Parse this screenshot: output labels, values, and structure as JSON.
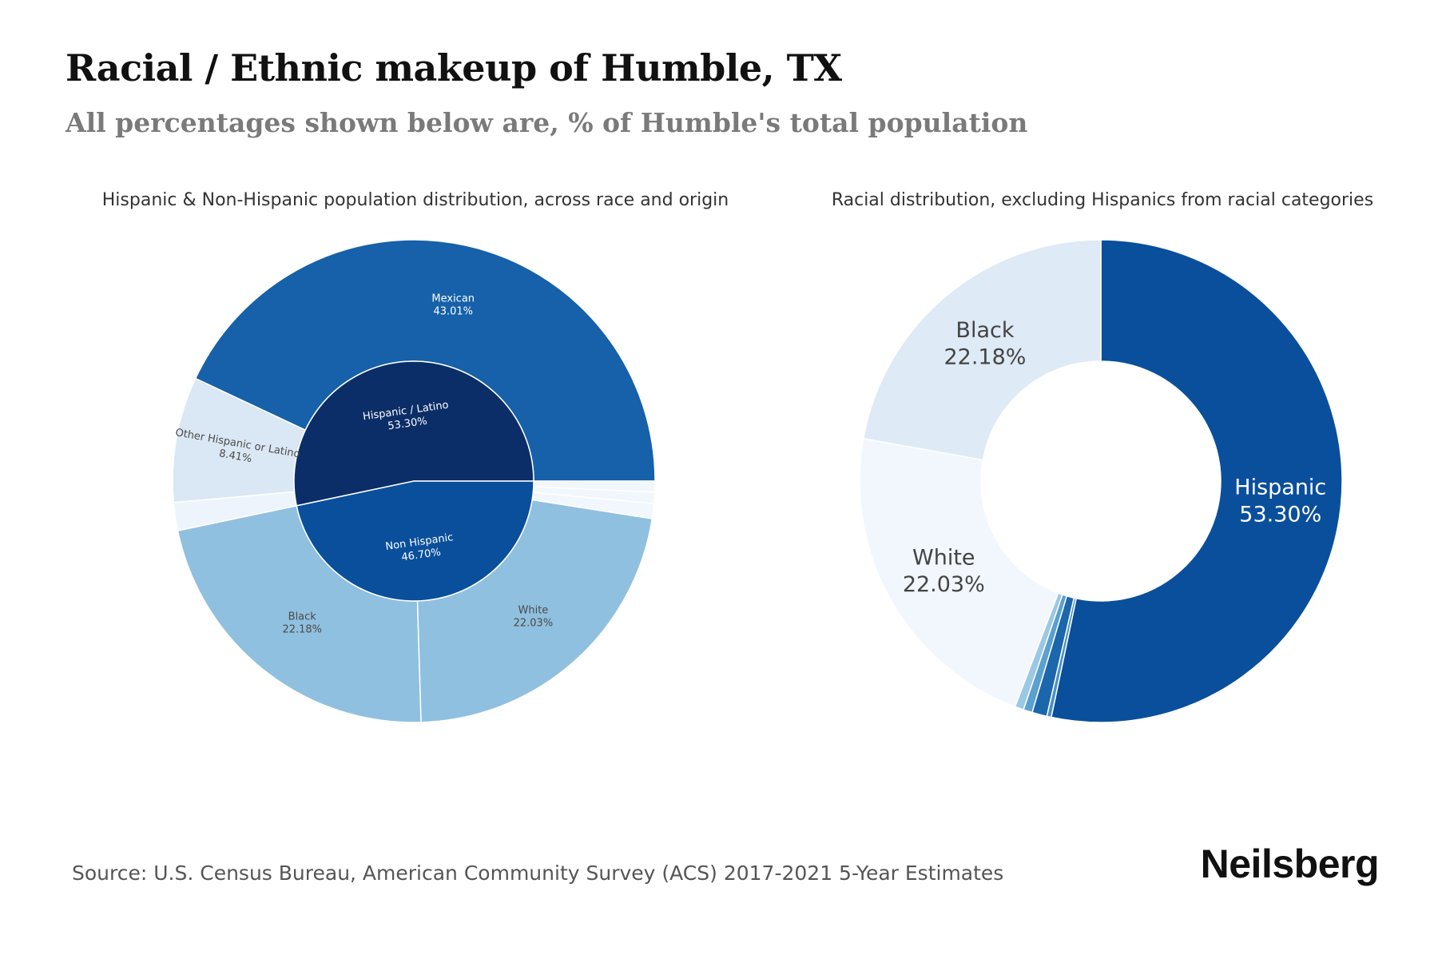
{
  "title": "Racial / Ethnic makeup of Humble, TX",
  "subtitle": "All percentages shown below are, % of Humble's total population",
  "source": "Source: U.S. Census Bureau, American Community Survey (ACS) 2017-2021 5-Year Estimates",
  "brand": "Neilsberg",
  "chart_data": [
    {
      "type": "sunburst",
      "title": "Hispanic & Non-Hispanic population distribution, across race and origin",
      "inner": [
        {
          "label": "Hispanic / Latino",
          "value": 53.3,
          "value_label": "53.30%",
          "color": "#0b2e68"
        },
        {
          "label": "Non Hispanic",
          "value": 46.7,
          "value_label": "46.70%",
          "color": "#0a4f9c"
        }
      ],
      "outer": [
        {
          "label": "Mexican",
          "value": 43.01,
          "value_label": "43.01%",
          "color": "#1661a9"
        },
        {
          "label": "Other Hispanic or Latino",
          "value": 8.41,
          "value_label": "8.41%",
          "color": "#dae7f4"
        },
        {
          "label": "",
          "value": 1.88,
          "value_label": "",
          "color": "#eef4fb"
        },
        {
          "label": "Black",
          "value": 22.18,
          "value_label": "22.18%",
          "color": "#90c0df"
        },
        {
          "label": "White",
          "value": 22.03,
          "value_label": "22.03%",
          "color": "#90c0df"
        },
        {
          "label": "",
          "value": 1.0,
          "value_label": "",
          "color": "#f1f7fd"
        },
        {
          "label": "",
          "value": 0.75,
          "value_label": "",
          "color": "#f1f7fd"
        },
        {
          "label": "",
          "value": 0.74,
          "value_label": "",
          "color": "#f1f7fd"
        }
      ]
    },
    {
      "type": "donut",
      "title": "Racial distribution, excluding Hispanics from racial categories",
      "slices": [
        {
          "label": "Hispanic",
          "value": 53.3,
          "value_label": "53.30%",
          "color": "#0a4f9c"
        },
        {
          "label": "",
          "value": 0.3,
          "value_label": "",
          "color": "#4a92c6"
        },
        {
          "label": "",
          "value": 1.0,
          "value_label": "",
          "color": "#1c66ac"
        },
        {
          "label": "",
          "value": 0.6,
          "value_label": "",
          "color": "#5aa0d0"
        },
        {
          "label": "",
          "value": 0.59,
          "value_label": "",
          "color": "#9bc8e4"
        },
        {
          "label": "White",
          "value": 22.03,
          "value_label": "22.03%",
          "color": "#f1f7fd"
        },
        {
          "label": "Black",
          "value": 22.18,
          "value_label": "22.18%",
          "color": "#deeaf6"
        }
      ]
    }
  ]
}
